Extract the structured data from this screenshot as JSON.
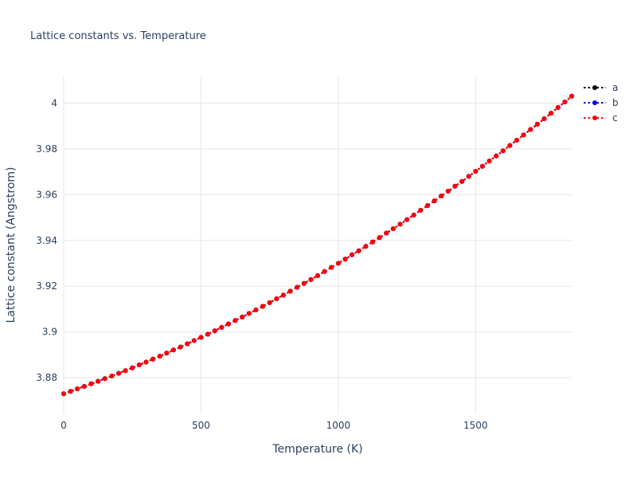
{
  "chart_data": {
    "type": "line",
    "title": "Lattice constants vs. Temperature",
    "xlabel": "Temperature (K)",
    "ylabel": "Lattice constant (Angstrom)",
    "xlim": [
      0,
      1850
    ],
    "ylim": [
      3.864,
      4.012
    ],
    "x_ticks": [
      0,
      500,
      1000,
      1500
    ],
    "x_tick_labels": [
      "0",
      "500",
      "1000",
      "1500"
    ],
    "y_ticks": [
      3.88,
      3.9,
      3.92,
      3.94,
      3.96,
      3.98,
      4
    ],
    "y_tick_labels": [
      "3.88",
      "3.9",
      "3.92",
      "3.94",
      "3.96",
      "3.98",
      "4"
    ],
    "grid": true,
    "grid_color": "#e6e6e6",
    "background_color": "#ffffff",
    "text_color": "#2a3f5f",
    "legend_position": "top-right-outside",
    "line_style": "dotted",
    "marker": "circle",
    "x": [
      0,
      25,
      50,
      75,
      100,
      125,
      150,
      175,
      200,
      225,
      250,
      275,
      300,
      325,
      350,
      375,
      400,
      425,
      450,
      475,
      500,
      525,
      550,
      575,
      600,
      625,
      650,
      675,
      700,
      725,
      750,
      775,
      800,
      825,
      850,
      875,
      900,
      925,
      950,
      975,
      1000,
      1025,
      1050,
      1075,
      1100,
      1125,
      1150,
      1175,
      1200,
      1225,
      1250,
      1275,
      1300,
      1325,
      1350,
      1375,
      1400,
      1425,
      1450,
      1475,
      1500,
      1525,
      1550,
      1575,
      1600,
      1625,
      1650,
      1675,
      1700,
      1725,
      1750,
      1775,
      1800,
      1825,
      1850
    ],
    "series": [
      {
        "name": "a",
        "color": "#000000",
        "values": [
          3.873,
          3.874,
          3.8751,
          3.8762,
          3.8773,
          3.8784,
          3.8796,
          3.8807,
          3.8819,
          3.8831,
          3.8843,
          3.8856,
          3.8868,
          3.8881,
          3.8894,
          3.8907,
          3.8921,
          3.8934,
          3.8948,
          3.8962,
          3.8976,
          3.899,
          3.9005,
          3.902,
          3.9035,
          3.905,
          3.9065,
          3.9081,
          3.9096,
          3.9112,
          3.9128,
          3.9145,
          3.9161,
          3.9178,
          3.9195,
          3.9212,
          3.9229,
          3.9246,
          3.9264,
          3.9282,
          3.93,
          3.9318,
          3.9337,
          3.9355,
          3.9374,
          3.9393,
          3.9412,
          3.9432,
          3.9451,
          3.9471,
          3.9491,
          3.9511,
          3.9532,
          3.9552,
          3.9573,
          3.9594,
          3.9615,
          3.9637,
          3.9658,
          3.968,
          3.9702,
          3.9724,
          3.9747,
          3.9769,
          3.9792,
          3.9815,
          3.9838,
          3.9861,
          3.9885,
          3.9908,
          3.9932,
          3.9956,
          3.9981,
          4.0005,
          4.003
        ]
      },
      {
        "name": "b",
        "color": "#0000ff",
        "values": [
          3.873,
          3.874,
          3.8751,
          3.8762,
          3.8773,
          3.8784,
          3.8796,
          3.8807,
          3.8819,
          3.8831,
          3.8843,
          3.8856,
          3.8868,
          3.8881,
          3.8894,
          3.8907,
          3.8921,
          3.8934,
          3.8948,
          3.8962,
          3.8976,
          3.899,
          3.9005,
          3.902,
          3.9035,
          3.905,
          3.9065,
          3.9081,
          3.9096,
          3.9112,
          3.9128,
          3.9145,
          3.9161,
          3.9178,
          3.9195,
          3.9212,
          3.9229,
          3.9246,
          3.9264,
          3.9282,
          3.93,
          3.9318,
          3.9337,
          3.9355,
          3.9374,
          3.9393,
          3.9412,
          3.9432,
          3.9451,
          3.9471,
          3.9491,
          3.9511,
          3.9532,
          3.9552,
          3.9573,
          3.9594,
          3.9615,
          3.9637,
          3.9658,
          3.968,
          3.9702,
          3.9724,
          3.9747,
          3.9769,
          3.9792,
          3.9815,
          3.9838,
          3.9861,
          3.9885,
          3.9908,
          3.9932,
          3.9956,
          3.9981,
          4.0005,
          4.003
        ]
      },
      {
        "name": "c",
        "color": "#ff0000",
        "values": [
          3.873,
          3.874,
          3.8751,
          3.8762,
          3.8773,
          3.8784,
          3.8796,
          3.8807,
          3.8819,
          3.8831,
          3.8843,
          3.8856,
          3.8868,
          3.8881,
          3.8894,
          3.8907,
          3.8921,
          3.8934,
          3.8948,
          3.8962,
          3.8976,
          3.899,
          3.9005,
          3.902,
          3.9035,
          3.905,
          3.9065,
          3.9081,
          3.9096,
          3.9112,
          3.9128,
          3.9145,
          3.9161,
          3.9178,
          3.9195,
          3.9212,
          3.9229,
          3.9246,
          3.9264,
          3.9282,
          3.93,
          3.9318,
          3.9337,
          3.9355,
          3.9374,
          3.9393,
          3.9412,
          3.9432,
          3.9451,
          3.9471,
          3.9491,
          3.9511,
          3.9532,
          3.9552,
          3.9573,
          3.9594,
          3.9615,
          3.9637,
          3.9658,
          3.968,
          3.9702,
          3.9724,
          3.9747,
          3.9769,
          3.9792,
          3.9815,
          3.9838,
          3.9861,
          3.9885,
          3.9908,
          3.9932,
          3.9956,
          3.9981,
          4.0005,
          4.003
        ]
      }
    ]
  }
}
